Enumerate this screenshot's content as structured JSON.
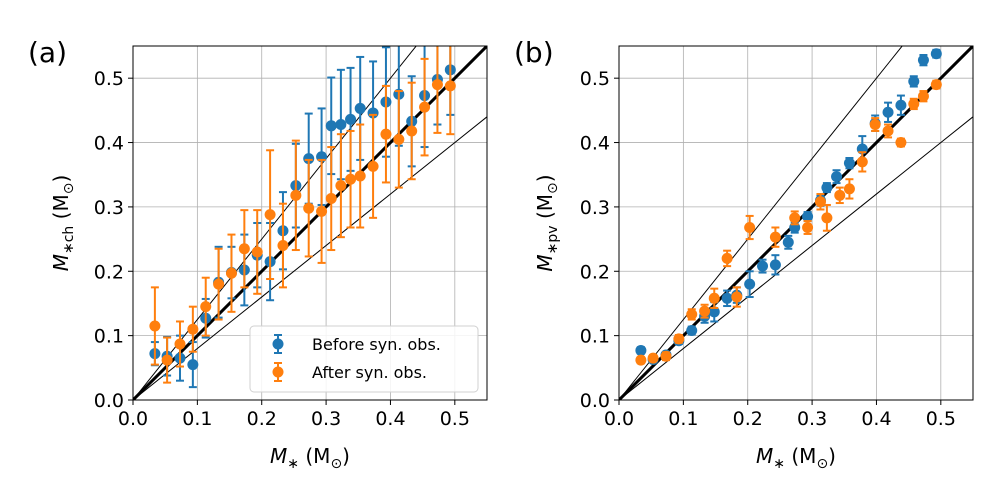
{
  "colors": {
    "before": "#1f77b4",
    "after": "#ff7f0e",
    "grid": "#b0b0b0"
  },
  "chart_data": [
    {
      "type": "scatter",
      "panel_label": "(a)",
      "xlabel": "M_* (M_⊙)",
      "ylabel": "M_*ch (M_⊙)",
      "xlabel_parts": {
        "main": "M",
        "sub": "∗",
        "units_open": " (M",
        "units_sub": "⊙",
        "units_close": ")"
      },
      "ylabel_parts": {
        "main": "M",
        "sub": "∗ch",
        "units_open": " (M",
        "units_sub": "⊙",
        "units_close": ")"
      },
      "xlim": [
        0,
        0.55
      ],
      "ylim": [
        0,
        0.55
      ],
      "xticks": [
        "0.0",
        "0.1",
        "0.2",
        "0.3",
        "0.4",
        "0.5"
      ],
      "yticks": [
        "0.0",
        "0.1",
        "0.2",
        "0.3",
        "0.4",
        "0.5"
      ],
      "reference_lines": [
        {
          "slope": 1.0,
          "style": "thick"
        },
        {
          "slope": 1.25,
          "style": "thin"
        },
        {
          "slope": 0.8,
          "style": "thin"
        }
      ],
      "legend": {
        "location": "lower-right",
        "entries": [
          "Before syn. obs.",
          "After syn. obs."
        ]
      },
      "series": [
        {
          "name": "Before syn. obs.",
          "points": [
            {
              "x": 0.034,
              "y": 0.072,
              "err": 0.018
            },
            {
              "x": 0.053,
              "y": 0.068,
              "err": 0.03
            },
            {
              "x": 0.073,
              "y": 0.065,
              "err": 0.035
            },
            {
              "x": 0.093,
              "y": 0.055,
              "err": 0.035
            },
            {
              "x": 0.113,
              "y": 0.127,
              "err": 0.03
            },
            {
              "x": 0.133,
              "y": 0.183,
              "err": 0.055
            },
            {
              "x": 0.153,
              "y": 0.198,
              "err": 0.04
            },
            {
              "x": 0.173,
              "y": 0.202,
              "err": 0.055
            },
            {
              "x": 0.193,
              "y": 0.225,
              "err": 0.05
            },
            {
              "x": 0.213,
              "y": 0.215,
              "err": 0.06
            },
            {
              "x": 0.233,
              "y": 0.263,
              "err": 0.06
            },
            {
              "x": 0.253,
              "y": 0.333,
              "err": 0.065
            },
            {
              "x": 0.273,
              "y": 0.375,
              "err": 0.07
            },
            {
              "x": 0.293,
              "y": 0.378,
              "err": 0.075
            },
            {
              "x": 0.308,
              "y": 0.426,
              "err": 0.075
            },
            {
              "x": 0.323,
              "y": 0.428,
              "err": 0.085
            },
            {
              "x": 0.338,
              "y": 0.436,
              "err": 0.08
            },
            {
              "x": 0.353,
              "y": 0.453,
              "err": 0.08
            },
            {
              "x": 0.373,
              "y": 0.446,
              "err": 0.08
            },
            {
              "x": 0.393,
              "y": 0.463,
              "err": 0.085
            },
            {
              "x": 0.413,
              "y": 0.475,
              "err": 0.08
            },
            {
              "x": 0.433,
              "y": 0.433,
              "err": 0.07
            },
            {
              "x": 0.453,
              "y": 0.473,
              "err": 0.08
            },
            {
              "x": 0.473,
              "y": 0.498,
              "err": 0.07
            },
            {
              "x": 0.493,
              "y": 0.513,
              "err": 0.07
            }
          ]
        },
        {
          "name": "After syn. obs.",
          "points": [
            {
              "x": 0.034,
              "y": 0.115,
              "err": 0.06
            },
            {
              "x": 0.053,
              "y": 0.062,
              "err": 0.035
            },
            {
              "x": 0.073,
              "y": 0.087,
              "err": 0.035
            },
            {
              "x": 0.093,
              "y": 0.11,
              "err": 0.035
            },
            {
              "x": 0.113,
              "y": 0.145,
              "err": 0.045
            },
            {
              "x": 0.133,
              "y": 0.18,
              "err": 0.055
            },
            {
              "x": 0.153,
              "y": 0.197,
              "err": 0.06
            },
            {
              "x": 0.173,
              "y": 0.235,
              "err": 0.06
            },
            {
              "x": 0.193,
              "y": 0.23,
              "err": 0.065
            },
            {
              "x": 0.213,
              "y": 0.288,
              "err": 0.1
            },
            {
              "x": 0.233,
              "y": 0.24,
              "err": 0.065
            },
            {
              "x": 0.253,
              "y": 0.318,
              "err": 0.085
            },
            {
              "x": 0.273,
              "y": 0.298,
              "err": 0.075
            },
            {
              "x": 0.293,
              "y": 0.293,
              "err": 0.08
            },
            {
              "x": 0.308,
              "y": 0.313,
              "err": 0.08
            },
            {
              "x": 0.323,
              "y": 0.333,
              "err": 0.08
            },
            {
              "x": 0.338,
              "y": 0.343,
              "err": 0.075
            },
            {
              "x": 0.353,
              "y": 0.348,
              "err": 0.08
            },
            {
              "x": 0.373,
              "y": 0.363,
              "err": 0.08
            },
            {
              "x": 0.393,
              "y": 0.413,
              "err": 0.075
            },
            {
              "x": 0.413,
              "y": 0.405,
              "err": 0.075
            },
            {
              "x": 0.433,
              "y": 0.418,
              "err": 0.075
            },
            {
              "x": 0.453,
              "y": 0.455,
              "err": 0.075
            },
            {
              "x": 0.473,
              "y": 0.49,
              "err": 0.075
            },
            {
              "x": 0.493,
              "y": 0.488,
              "err": 0.075
            }
          ]
        }
      ]
    },
    {
      "type": "scatter",
      "panel_label": "(b)",
      "xlabel": "M_* (M_⊙)",
      "ylabel": "M_*pv (M_⊙)",
      "xlabel_parts": {
        "main": "M",
        "sub": "∗",
        "units_open": " (M",
        "units_sub": "⊙",
        "units_close": ")"
      },
      "ylabel_parts": {
        "main": "M",
        "sub": "∗pv",
        "units_open": " (M",
        "units_sub": "⊙",
        "units_close": ")"
      },
      "xlim": [
        0,
        0.55
      ],
      "ylim": [
        0,
        0.55
      ],
      "xticks": [
        "0.0",
        "0.1",
        "0.2",
        "0.3",
        "0.4",
        "0.5"
      ],
      "yticks": [
        "0.0",
        "0.1",
        "0.2",
        "0.3",
        "0.4",
        "0.5"
      ],
      "reference_lines": [
        {
          "slope": 1.0,
          "style": "thick"
        },
        {
          "slope": 1.25,
          "style": "thin"
        },
        {
          "slope": 0.8,
          "style": "thin"
        }
      ],
      "series": [
        {
          "name": "Before syn. obs.",
          "points": [
            {
              "x": 0.034,
              "y": 0.077,
              "err": 0.005
            },
            {
              "x": 0.053,
              "y": 0.063,
              "err": 0.004
            },
            {
              "x": 0.073,
              "y": 0.07,
              "err": 0.004
            },
            {
              "x": 0.093,
              "y": 0.092,
              "err": 0.005
            },
            {
              "x": 0.113,
              "y": 0.108,
              "err": 0.006
            },
            {
              "x": 0.133,
              "y": 0.13,
              "err": 0.01
            },
            {
              "x": 0.148,
              "y": 0.137,
              "err": 0.015
            },
            {
              "x": 0.168,
              "y": 0.158,
              "err": 0.012
            },
            {
              "x": 0.183,
              "y": 0.163,
              "err": 0.012
            },
            {
              "x": 0.203,
              "y": 0.18,
              "err": 0.02
            },
            {
              "x": 0.223,
              "y": 0.208,
              "err": 0.01
            },
            {
              "x": 0.243,
              "y": 0.21,
              "err": 0.015
            },
            {
              "x": 0.263,
              "y": 0.245,
              "err": 0.01
            },
            {
              "x": 0.273,
              "y": 0.268,
              "err": 0.008
            },
            {
              "x": 0.293,
              "y": 0.285,
              "err": 0.007
            },
            {
              "x": 0.313,
              "y": 0.31,
              "err": 0.008
            },
            {
              "x": 0.323,
              "y": 0.33,
              "err": 0.007
            },
            {
              "x": 0.338,
              "y": 0.347,
              "err": 0.01
            },
            {
              "x": 0.358,
              "y": 0.368,
              "err": 0.008
            },
            {
              "x": 0.378,
              "y": 0.39,
              "err": 0.02
            },
            {
              "x": 0.398,
              "y": 0.43,
              "err": 0.012
            },
            {
              "x": 0.418,
              "y": 0.447,
              "err": 0.015
            },
            {
              "x": 0.438,
              "y": 0.458,
              "err": 0.015
            },
            {
              "x": 0.458,
              "y": 0.495,
              "err": 0.008
            },
            {
              "x": 0.473,
              "y": 0.528,
              "err": 0.008
            },
            {
              "x": 0.493,
              "y": 0.538,
              "err": 0.006
            }
          ]
        },
        {
          "name": "After syn. obs.",
          "points": [
            {
              "x": 0.034,
              "y": 0.062,
              "err": 0.005
            },
            {
              "x": 0.053,
              "y": 0.065,
              "err": 0.005
            },
            {
              "x": 0.073,
              "y": 0.068,
              "err": 0.006
            },
            {
              "x": 0.093,
              "y": 0.095,
              "err": 0.006
            },
            {
              "x": 0.113,
              "y": 0.133,
              "err": 0.008
            },
            {
              "x": 0.133,
              "y": 0.138,
              "err": 0.01
            },
            {
              "x": 0.148,
              "y": 0.158,
              "err": 0.015
            },
            {
              "x": 0.168,
              "y": 0.22,
              "err": 0.012
            },
            {
              "x": 0.183,
              "y": 0.16,
              "err": 0.015
            },
            {
              "x": 0.203,
              "y": 0.268,
              "err": 0.018
            },
            {
              "x": 0.243,
              "y": 0.253,
              "err": 0.015
            },
            {
              "x": 0.273,
              "y": 0.283,
              "err": 0.01
            },
            {
              "x": 0.293,
              "y": 0.268,
              "err": 0.01
            },
            {
              "x": 0.313,
              "y": 0.308,
              "err": 0.012
            },
            {
              "x": 0.323,
              "y": 0.283,
              "err": 0.02
            },
            {
              "x": 0.343,
              "y": 0.318,
              "err": 0.012
            },
            {
              "x": 0.358,
              "y": 0.328,
              "err": 0.015
            },
            {
              "x": 0.378,
              "y": 0.37,
              "err": 0.015
            },
            {
              "x": 0.398,
              "y": 0.428,
              "err": 0.01
            },
            {
              "x": 0.418,
              "y": 0.418,
              "err": 0.01
            },
            {
              "x": 0.438,
              "y": 0.4,
              "err": 0.006
            },
            {
              "x": 0.458,
              "y": 0.46,
              "err": 0.008
            },
            {
              "x": 0.473,
              "y": 0.472,
              "err": 0.008
            },
            {
              "x": 0.493,
              "y": 0.49,
              "err": 0.006
            }
          ]
        }
      ]
    }
  ]
}
